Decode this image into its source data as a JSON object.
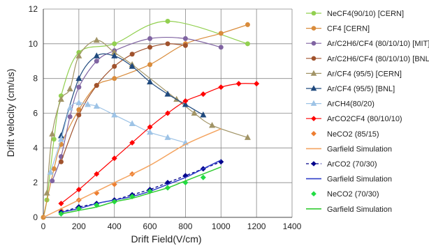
{
  "chart_data": {
    "type": "scatter",
    "title": "",
    "xlabel": "Drift Field(V/cm)",
    "ylabel": "Drift velocity (cm/us)",
    "xlim": [
      0,
      1400
    ],
    "ylim": [
      0,
      12
    ],
    "x_ticks": [
      "0",
      "200",
      "400",
      "600",
      "800",
      "1000",
      "1200",
      "1400"
    ],
    "y_ticks": [
      "0",
      "2",
      "4",
      "6",
      "8",
      "10",
      "12"
    ],
    "grid": "major",
    "legend_position": "right",
    "series": [
      {
        "name": "NeCF4(90/10) [CERN]",
        "color": "#92d050",
        "marker": "circle",
        "line": "smooth",
        "x": [
          0,
          20,
          60,
          100,
          200,
          400,
          700,
          1150
        ],
        "y": [
          0,
          1.0,
          4.5,
          7.0,
          9.5,
          10.0,
          11.3,
          10.0
        ]
      },
      {
        "name": "CF4 [CERN]",
        "color": "#d98c3c",
        "marker": "circle",
        "line": "smooth",
        "x": [
          0,
          60,
          100,
          200,
          300,
          400,
          600,
          800,
          1000,
          1150
        ],
        "y": [
          0,
          2.8,
          4.2,
          6.2,
          7.6,
          8.0,
          8.8,
          10.0,
          10.6,
          11.1
        ]
      },
      {
        "name": "Ar/C2H6/CF4 (80/10/10) [MIT]",
        "color": "#8064a2",
        "marker": "circle",
        "line": "smooth",
        "x": [
          50,
          100,
          150,
          200,
          300,
          400,
          600,
          800,
          1000
        ],
        "y": [
          2.1,
          3.5,
          5.8,
          7.5,
          9.0,
          9.6,
          10.3,
          10.3,
          9.8
        ]
      },
      {
        "name": "Ar/C2H6/CF4 (80/10/10) [BNL]",
        "color": "#a0522d",
        "marker": "circle",
        "line": "smooth",
        "x": [
          100,
          200,
          300,
          400,
          500,
          600,
          700,
          800
        ],
        "y": [
          3.2,
          5.9,
          7.6,
          8.7,
          9.4,
          9.8,
          10.0,
          9.9
        ]
      },
      {
        "name": "Ar/CF4 (95/5) [CERN]",
        "color": "#a19466",
        "marker": "triangle",
        "line": "smooth",
        "x": [
          20,
          50,
          100,
          150,
          200,
          300,
          400,
          500,
          750,
          850,
          950,
          1150
        ],
        "y": [
          1.4,
          4.8,
          6.8,
          7.4,
          9.3,
          10.2,
          9.5,
          8.8,
          6.8,
          6.0,
          5.3,
          4.6
        ]
      },
      {
        "name": "Ar/CF4 (95/5) [BNL]",
        "color": "#1f497d",
        "marker": "triangle",
        "line": "smooth",
        "x": [
          100,
          200,
          300,
          400,
          500,
          600,
          700,
          800,
          900
        ],
        "y": [
          4.7,
          8.0,
          9.3,
          9.3,
          8.7,
          7.8,
          7.1,
          6.5,
          5.9
        ]
      },
      {
        "name": "ArCH4(80/20)",
        "color": "#9dc3e6",
        "marker": "triangle",
        "line": "smooth",
        "x": [
          40,
          100,
          150,
          200,
          250,
          300,
          400,
          500,
          600,
          700,
          800
        ],
        "y": [
          2.6,
          4.5,
          6.3,
          6.6,
          6.5,
          6.4,
          5.9,
          5.4,
          4.9,
          4.6,
          4.3
        ]
      },
      {
        "name": "ArCO2CF4 (80/10/10)",
        "color": "#ff0000",
        "marker": "diamond",
        "line": "smooth",
        "x": [
          100,
          200,
          300,
          400,
          500,
          600,
          700,
          800,
          900,
          1000,
          1100,
          1200
        ],
        "y": [
          0.8,
          1.6,
          2.5,
          3.4,
          4.3,
          5.2,
          6.0,
          6.7,
          7.1,
          7.5,
          7.7,
          7.7
        ]
      },
      {
        "name": "NeCO2 (85/15)",
        "color": "#ed7d31",
        "marker": "diamond",
        "line": "none",
        "x": [
          100,
          200,
          300,
          400,
          500
        ],
        "y": [
          0.4,
          1.0,
          1.4,
          1.9,
          2.5
        ]
      },
      {
        "name": "Garfield Simulation",
        "color": "#f4a460",
        "marker": "none",
        "line": "solid",
        "x": [
          0,
          200,
          400,
          600,
          800,
          1000
        ],
        "y": [
          0,
          1.0,
          2.0,
          3.0,
          4.2,
          5.1
        ]
      },
      {
        "name": "ArCO2 (70/30)",
        "color": "#00008b",
        "marker": "diamond",
        "line": "dashed",
        "x": [
          100,
          200,
          300,
          400,
          500,
          600,
          700,
          800,
          900,
          1000
        ],
        "y": [
          0.3,
          0.6,
          0.8,
          1.0,
          1.3,
          1.6,
          2.0,
          2.4,
          2.8,
          3.2
        ]
      },
      {
        "name": "Garfield Simulation",
        "color": "#2f3fc8",
        "marker": "none",
        "line": "solid",
        "x": [
          100,
          200,
          300,
          400,
          500,
          600,
          700,
          800,
          900,
          1000
        ],
        "y": [
          0.3,
          0.5,
          0.8,
          1.0,
          1.2,
          1.5,
          1.9,
          2.3,
          2.8,
          3.3
        ]
      },
      {
        "name": "NeCO2 (70/30)",
        "color": "#22dd44",
        "marker": "diamond",
        "line": "none",
        "x": [
          100,
          200,
          300,
          400,
          500,
          600,
          700,
          800,
          900
        ],
        "y": [
          0.2,
          0.5,
          0.7,
          0.9,
          1.2,
          1.5,
          1.7,
          2.0,
          2.3
        ]
      },
      {
        "name": "Garfield Simulation",
        "color": "#33cc33",
        "marker": "none",
        "line": "solid",
        "x": [
          100,
          200,
          300,
          400,
          500,
          600,
          700,
          800,
          900,
          1000
        ],
        "y": [
          0.2,
          0.4,
          0.6,
          0.9,
          1.1,
          1.4,
          1.7,
          2.1,
          2.5,
          2.9
        ]
      }
    ]
  }
}
